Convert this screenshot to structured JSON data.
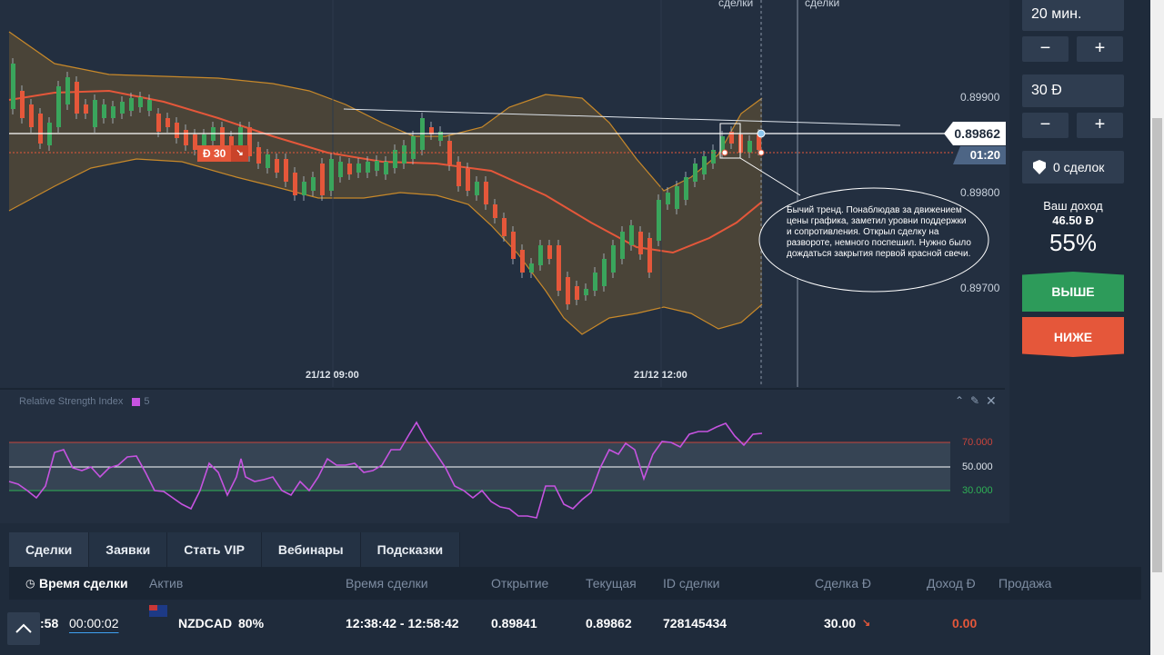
{
  "chart": {
    "top_labels": [
      "сделки",
      "сделки"
    ],
    "price_ticks": [
      "0.89900",
      "0.89800",
      "0.89700"
    ],
    "time_ticks": [
      "21/12 09:00",
      "21/12 12:00"
    ],
    "current_price": "0.89862",
    "timer": "01:20",
    "trade_marker": "Đ 30",
    "trade_marker_icon": "arrow-down-right",
    "annotation": "Бычий тренд. Понаблюдав за движением цены графика, заметил уровни поддержки и сопротивления. Открыл сделку на развороте, немного поспешил. Нужно было дождаться закрытия первой красной свечи.",
    "colors": {
      "up": "#3aa55c",
      "down": "#e5573a",
      "band": "#c8892a",
      "ma": "#e5573a",
      "rsi": "#c653e0"
    }
  },
  "rsi": {
    "title": "Relative Strength Index",
    "period": "5",
    "levels": [
      "70.000",
      "50.000",
      "30.000"
    ]
  },
  "panel": {
    "duration": "20 мин.",
    "amount": "30 Đ",
    "minus": "−",
    "plus": "+",
    "deals_count": "0 сделок",
    "income_label": "Ваш доход",
    "income_value": "46.50 Đ",
    "income_percent": "55%",
    "up_button": "ВЫШЕ",
    "down_button": "НИЖЕ"
  },
  "tabs": [
    "Сделки",
    "Заявки",
    "Стать VIP",
    "Вебинары",
    "Подсказки"
  ],
  "table": {
    "headers": [
      "Время сделки",
      "Актив",
      "Время сделки",
      "Открытие",
      "Текущая",
      "ID сделки",
      "Сделка Đ",
      "Доход Đ",
      "Продажа"
    ],
    "row": {
      "time_left": ":58",
      "countdown": "00:00:02",
      "asset": "NZDCAD",
      "percent": "80%",
      "period": "12:38:42 - 12:58:42",
      "open": "0.89841",
      "current": "0.89862",
      "id": "728145434",
      "amount": "30.00",
      "income": "0.00"
    }
  }
}
